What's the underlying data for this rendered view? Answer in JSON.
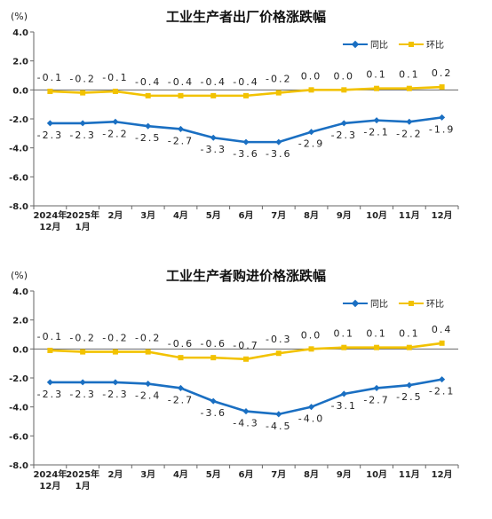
{
  "colors": {
    "yoy": "#1a6fc2",
    "mom": "#f2c200",
    "axis": "#666666",
    "text": "#222222"
  },
  "chart_data": [
    {
      "type": "line",
      "title": "工业生产者出厂价格涨跌幅",
      "unit": "(%)",
      "ylim": [
        -8,
        4
      ],
      "y_ticks": [
        "4.0",
        "2.0",
        "0.0",
        "-2.0",
        "-4.0",
        "-6.0",
        "-8.0"
      ],
      "categories": [
        "2024年12月",
        "2025年1月",
        "2月",
        "3月",
        "4月",
        "5月",
        "6月",
        "7月",
        "8月",
        "9月",
        "10月",
        "11月",
        "12月"
      ],
      "series": [
        {
          "name": "同比",
          "color": "#1a6fc2",
          "marker": "diamond",
          "values": [
            -2.3,
            -2.3,
            -2.2,
            -2.5,
            -2.7,
            -3.3,
            -3.6,
            -3.6,
            -2.9,
            -2.3,
            -2.1,
            -2.2,
            -1.9
          ],
          "labels": [
            "-2.3",
            "-2.3",
            "-2.2",
            "-2.5",
            "-2.7",
            "-3.3",
            "-3.6",
            "-3.6",
            "-2.9",
            "-2.3",
            "-2.1",
            "-2.2",
            "-1.9"
          ]
        },
        {
          "name": "环比",
          "color": "#f2c200",
          "marker": "square",
          "values": [
            -0.1,
            -0.2,
            -0.1,
            -0.4,
            -0.4,
            -0.4,
            -0.4,
            -0.2,
            0.0,
            0.0,
            0.1,
            0.1,
            0.2
          ],
          "labels": [
            "-0.1",
            "-0.2",
            "-0.1",
            "-0.4",
            "-0.4",
            "-0.4",
            "-0.4",
            "-0.2",
            "0.0",
            "0.0",
            "0.1",
            "0.1",
            "0.2"
          ]
        }
      ],
      "grid": false,
      "legend_position": "top-right"
    },
    {
      "type": "line",
      "title": "工业生产者购进价格涨跌幅",
      "unit": "(%)",
      "ylim": [
        -8,
        4
      ],
      "y_ticks": [
        "4.0",
        "2.0",
        "0.0",
        "-2.0",
        "-4.0",
        "-6.0",
        "-8.0"
      ],
      "categories": [
        "2024年12月",
        "2025年1月",
        "2月",
        "3月",
        "4月",
        "5月",
        "6月",
        "7月",
        "8月",
        "9月",
        "10月",
        "11月",
        "12月"
      ],
      "series": [
        {
          "name": "同比",
          "color": "#1a6fc2",
          "marker": "diamond",
          "values": [
            -2.3,
            -2.3,
            -2.3,
            -2.4,
            -2.7,
            -3.6,
            -4.3,
            -4.5,
            -4.0,
            -3.1,
            -2.7,
            -2.5,
            -2.1
          ],
          "labels": [
            "-2.3",
            "-2.3",
            "-2.3",
            "-2.4",
            "-2.7",
            "-3.6",
            "-4.3",
            "-4.5",
            "-4.0",
            "-3.1",
            "-2.7",
            "-2.5",
            "-2.1"
          ]
        },
        {
          "name": "环比",
          "color": "#f2c200",
          "marker": "square",
          "values": [
            -0.1,
            -0.2,
            -0.2,
            -0.2,
            -0.6,
            -0.6,
            -0.7,
            -0.3,
            0.0,
            0.1,
            0.1,
            0.1,
            0.4
          ],
          "labels": [
            "-0.1",
            "-0.2",
            "-0.2",
            "-0.2",
            "-0.6",
            "-0.6",
            "-0.7",
            "-0.3",
            "0.0",
            "0.1",
            "0.1",
            "0.1",
            "0.4"
          ]
        }
      ],
      "grid": false,
      "legend_position": "top-right"
    }
  ]
}
